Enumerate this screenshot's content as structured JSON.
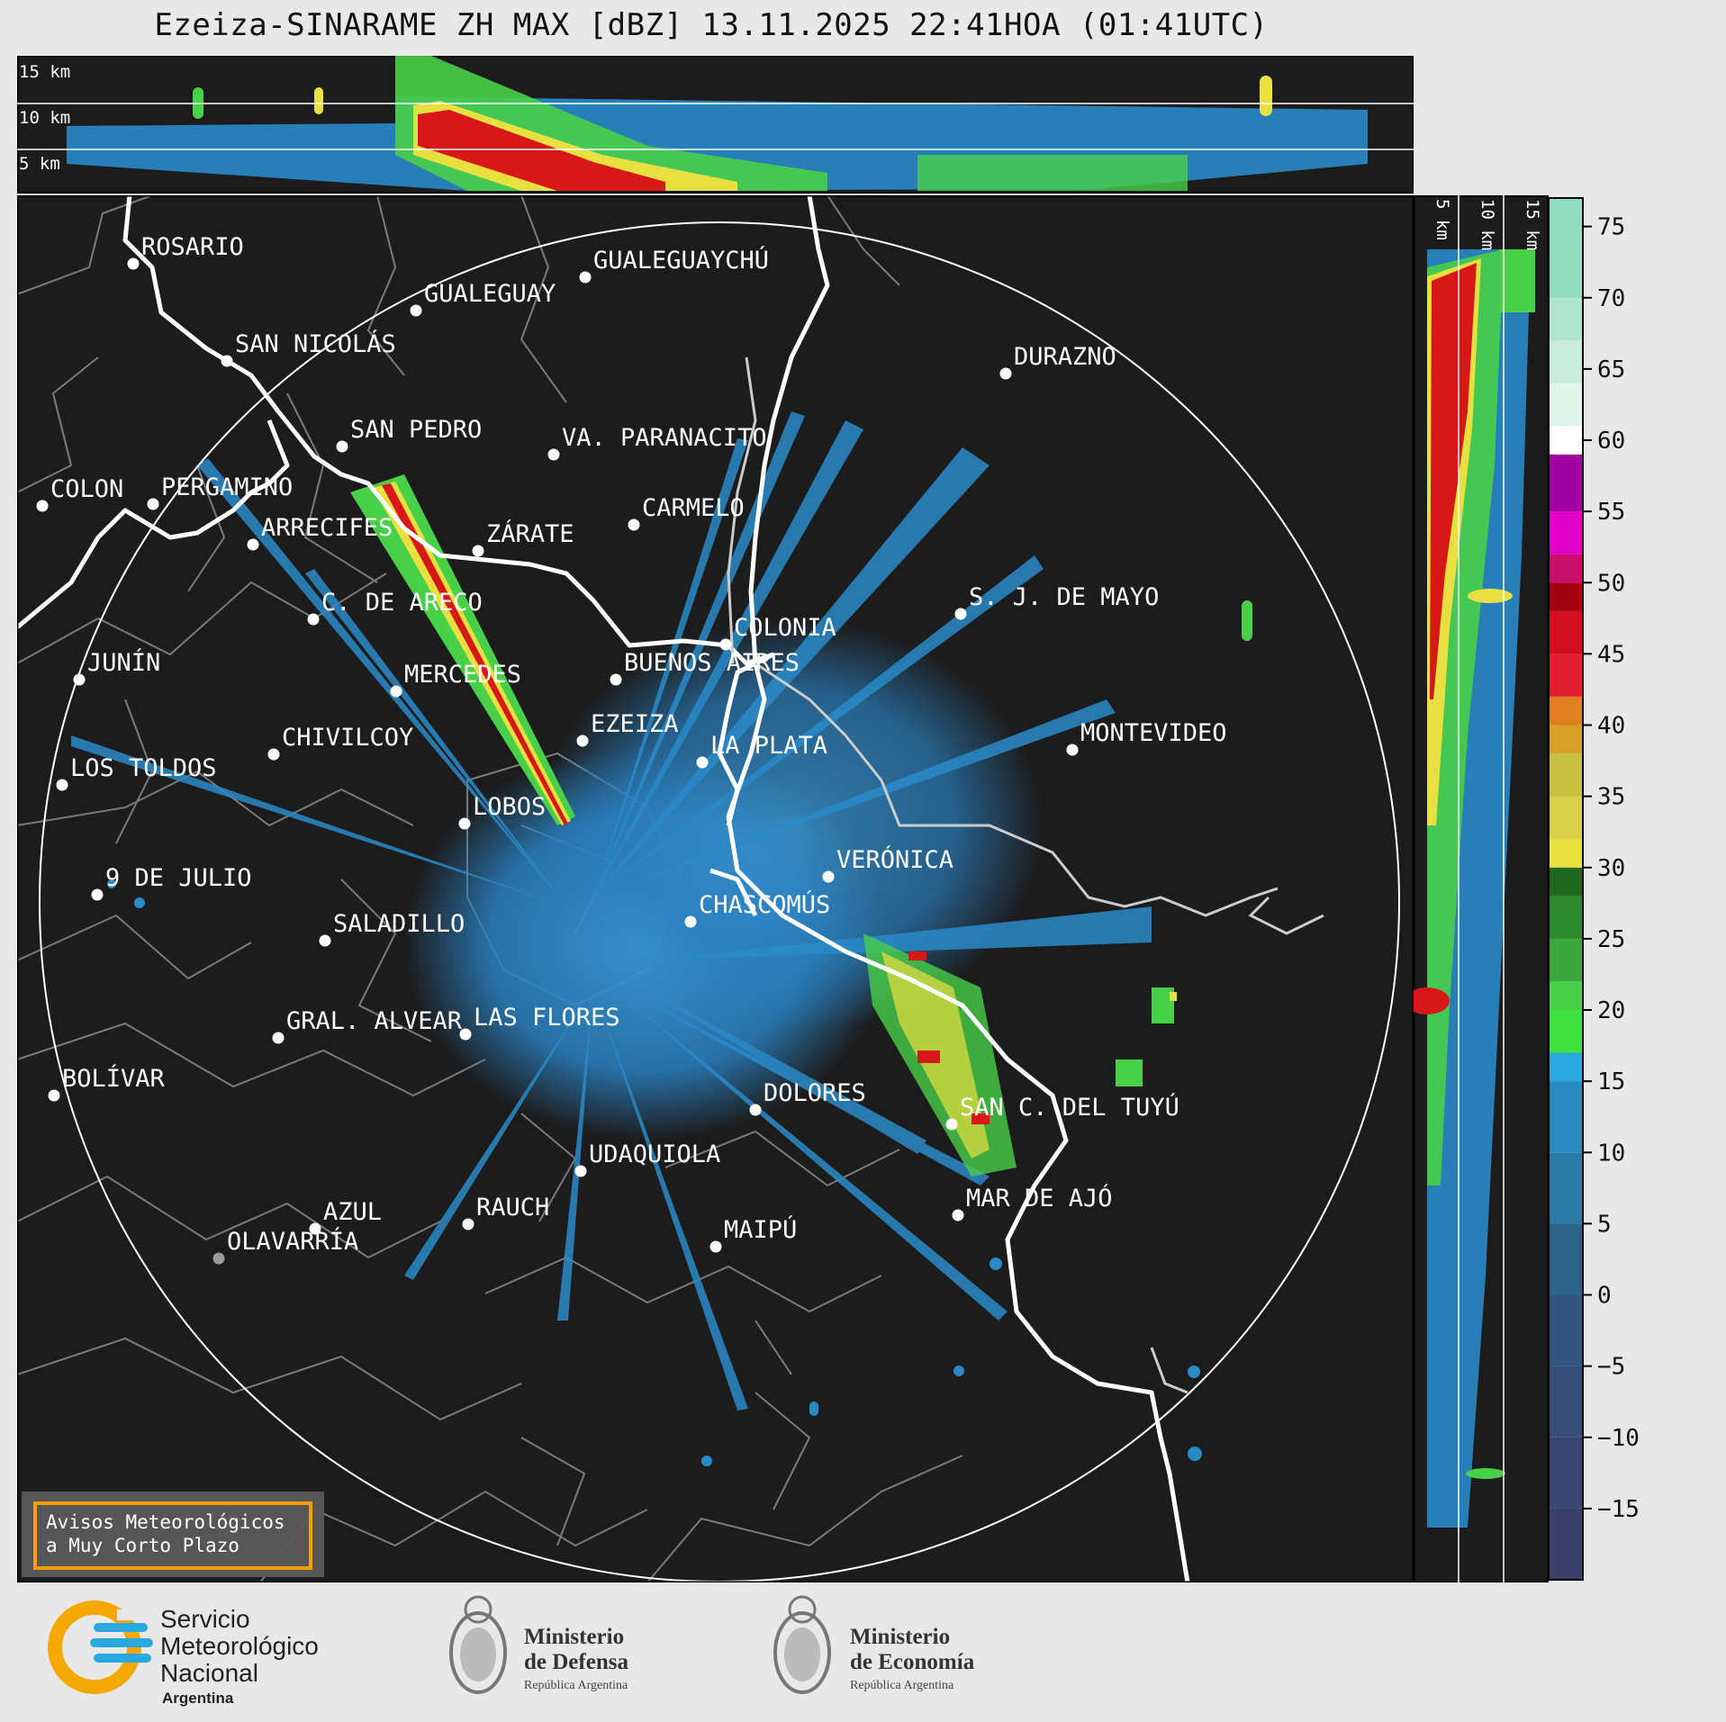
{
  "title": "Ezeiza-SINARAME ZH MAX [dBZ] 13.11.2025 22:41HOA (01:41UTC)",
  "top_panel": {
    "height_labels": [
      "15 km",
      "10 km",
      "5 km"
    ]
  },
  "right_panel": {
    "height_labels": [
      "5 km",
      "10 km",
      "15 km"
    ]
  },
  "colorbar": {
    "ticks": [
      75,
      70,
      65,
      60,
      55,
      50,
      45,
      40,
      35,
      30,
      25,
      20,
      15,
      10,
      5,
      0,
      -5,
      -10,
      -15
    ],
    "tick_labels": [
      "75",
      "70",
      "65",
      "60",
      "55",
      "50",
      "45",
      "40",
      "35",
      "30",
      "25",
      "20",
      "15",
      "10",
      "5",
      "0",
      "−5",
      "−10",
      "−15"
    ],
    "range": [
      -20,
      77
    ],
    "segments": [
      {
        "from": 60,
        "to": 77,
        "color": "#a0e0c8",
        "note_color2": "#ffffff"
      },
      {
        "from": 50,
        "to": 59,
        "color": "#d800c8"
      },
      {
        "from": 45,
        "to": 50,
        "color": "#c00018"
      },
      {
        "from": 40,
        "to": 45,
        "color": "#e02030"
      },
      {
        "from": 35,
        "to": 40,
        "color": "#d8a028"
      },
      {
        "from": 30,
        "to": 35,
        "color": "#e8e040"
      },
      {
        "from": 20,
        "to": 30,
        "color": "#2e8a2e"
      },
      {
        "from": 17,
        "to": 20,
        "color": "#40e040"
      },
      {
        "from": 5,
        "to": 17,
        "color": "#2a9ad0"
      },
      {
        "from": -20,
        "to": 5,
        "color": "#34507a"
      }
    ]
  },
  "map": {
    "radar_site": "EZEIZA",
    "cities": [
      {
        "name": "ROSARIO"
      },
      {
        "name": "GUALEGUAYCHÚ"
      },
      {
        "name": "GUALEGUAY"
      },
      {
        "name": "SAN NICOLÁS"
      },
      {
        "name": "DURAZNO"
      },
      {
        "name": "SAN PEDRO"
      },
      {
        "name": "VA. PARANACITO"
      },
      {
        "name": "COLON"
      },
      {
        "name": "PERGAMINO"
      },
      {
        "name": "CARMELO"
      },
      {
        "name": "ARRECIFES"
      },
      {
        "name": "ZÁRATE"
      },
      {
        "name": "S. J. DE MAYO"
      },
      {
        "name": "C. DE ARECO"
      },
      {
        "name": "COLONIA"
      },
      {
        "name": "JUNÍN"
      },
      {
        "name": "MERCEDES"
      },
      {
        "name": "BUENOS AIRES"
      },
      {
        "name": "EZEIZA"
      },
      {
        "name": "MONTEVIDEO"
      },
      {
        "name": "CHIVILCOY"
      },
      {
        "name": "LA PLATA"
      },
      {
        "name": "LOS TOLDOS"
      },
      {
        "name": "LOBOS"
      },
      {
        "name": "VERÓNICA"
      },
      {
        "name": "9 DE JULIO"
      },
      {
        "name": "CHASCOMÚS"
      },
      {
        "name": "SALADILLO"
      },
      {
        "name": "GRAL. ALVEAR"
      },
      {
        "name": "LAS FLORES"
      },
      {
        "name": "BOLÍVAR"
      },
      {
        "name": "DOLORES"
      },
      {
        "name": "SAN C. DEL TUYÚ"
      },
      {
        "name": "UDAQUIOLA"
      },
      {
        "name": "MAR DE AJÓ"
      },
      {
        "name": "AZUL"
      },
      {
        "name": "RAUCH"
      },
      {
        "name": "MAIPÚ"
      },
      {
        "name": "OLAVARRÍA"
      }
    ],
    "notice_badge": [
      "Avisos Meteorológicos",
      "a Muy Corto Plazo"
    ]
  },
  "footer": {
    "smn": {
      "lines": [
        "Servicio",
        "Meteorológico",
        "Nacional"
      ],
      "country": "Argentina"
    },
    "defensa": {
      "lines": [
        "Ministerio",
        "de Defensa"
      ],
      "sub": "República Argentina"
    },
    "economia": {
      "lines": [
        "Ministerio",
        "de Economía"
      ],
      "sub": "República Argentina"
    }
  },
  "colors": {
    "map_bg": "#1c1c1c",
    "coast": "#ffffff",
    "borders": "#7a7a7a",
    "echo_light": "#2a8ac8",
    "echo_mid": "#3aa0e0",
    "echo_green": "#48d048",
    "echo_yellow": "#e8e040",
    "echo_red": "#d81818",
    "badge_border": "#f5a000"
  }
}
